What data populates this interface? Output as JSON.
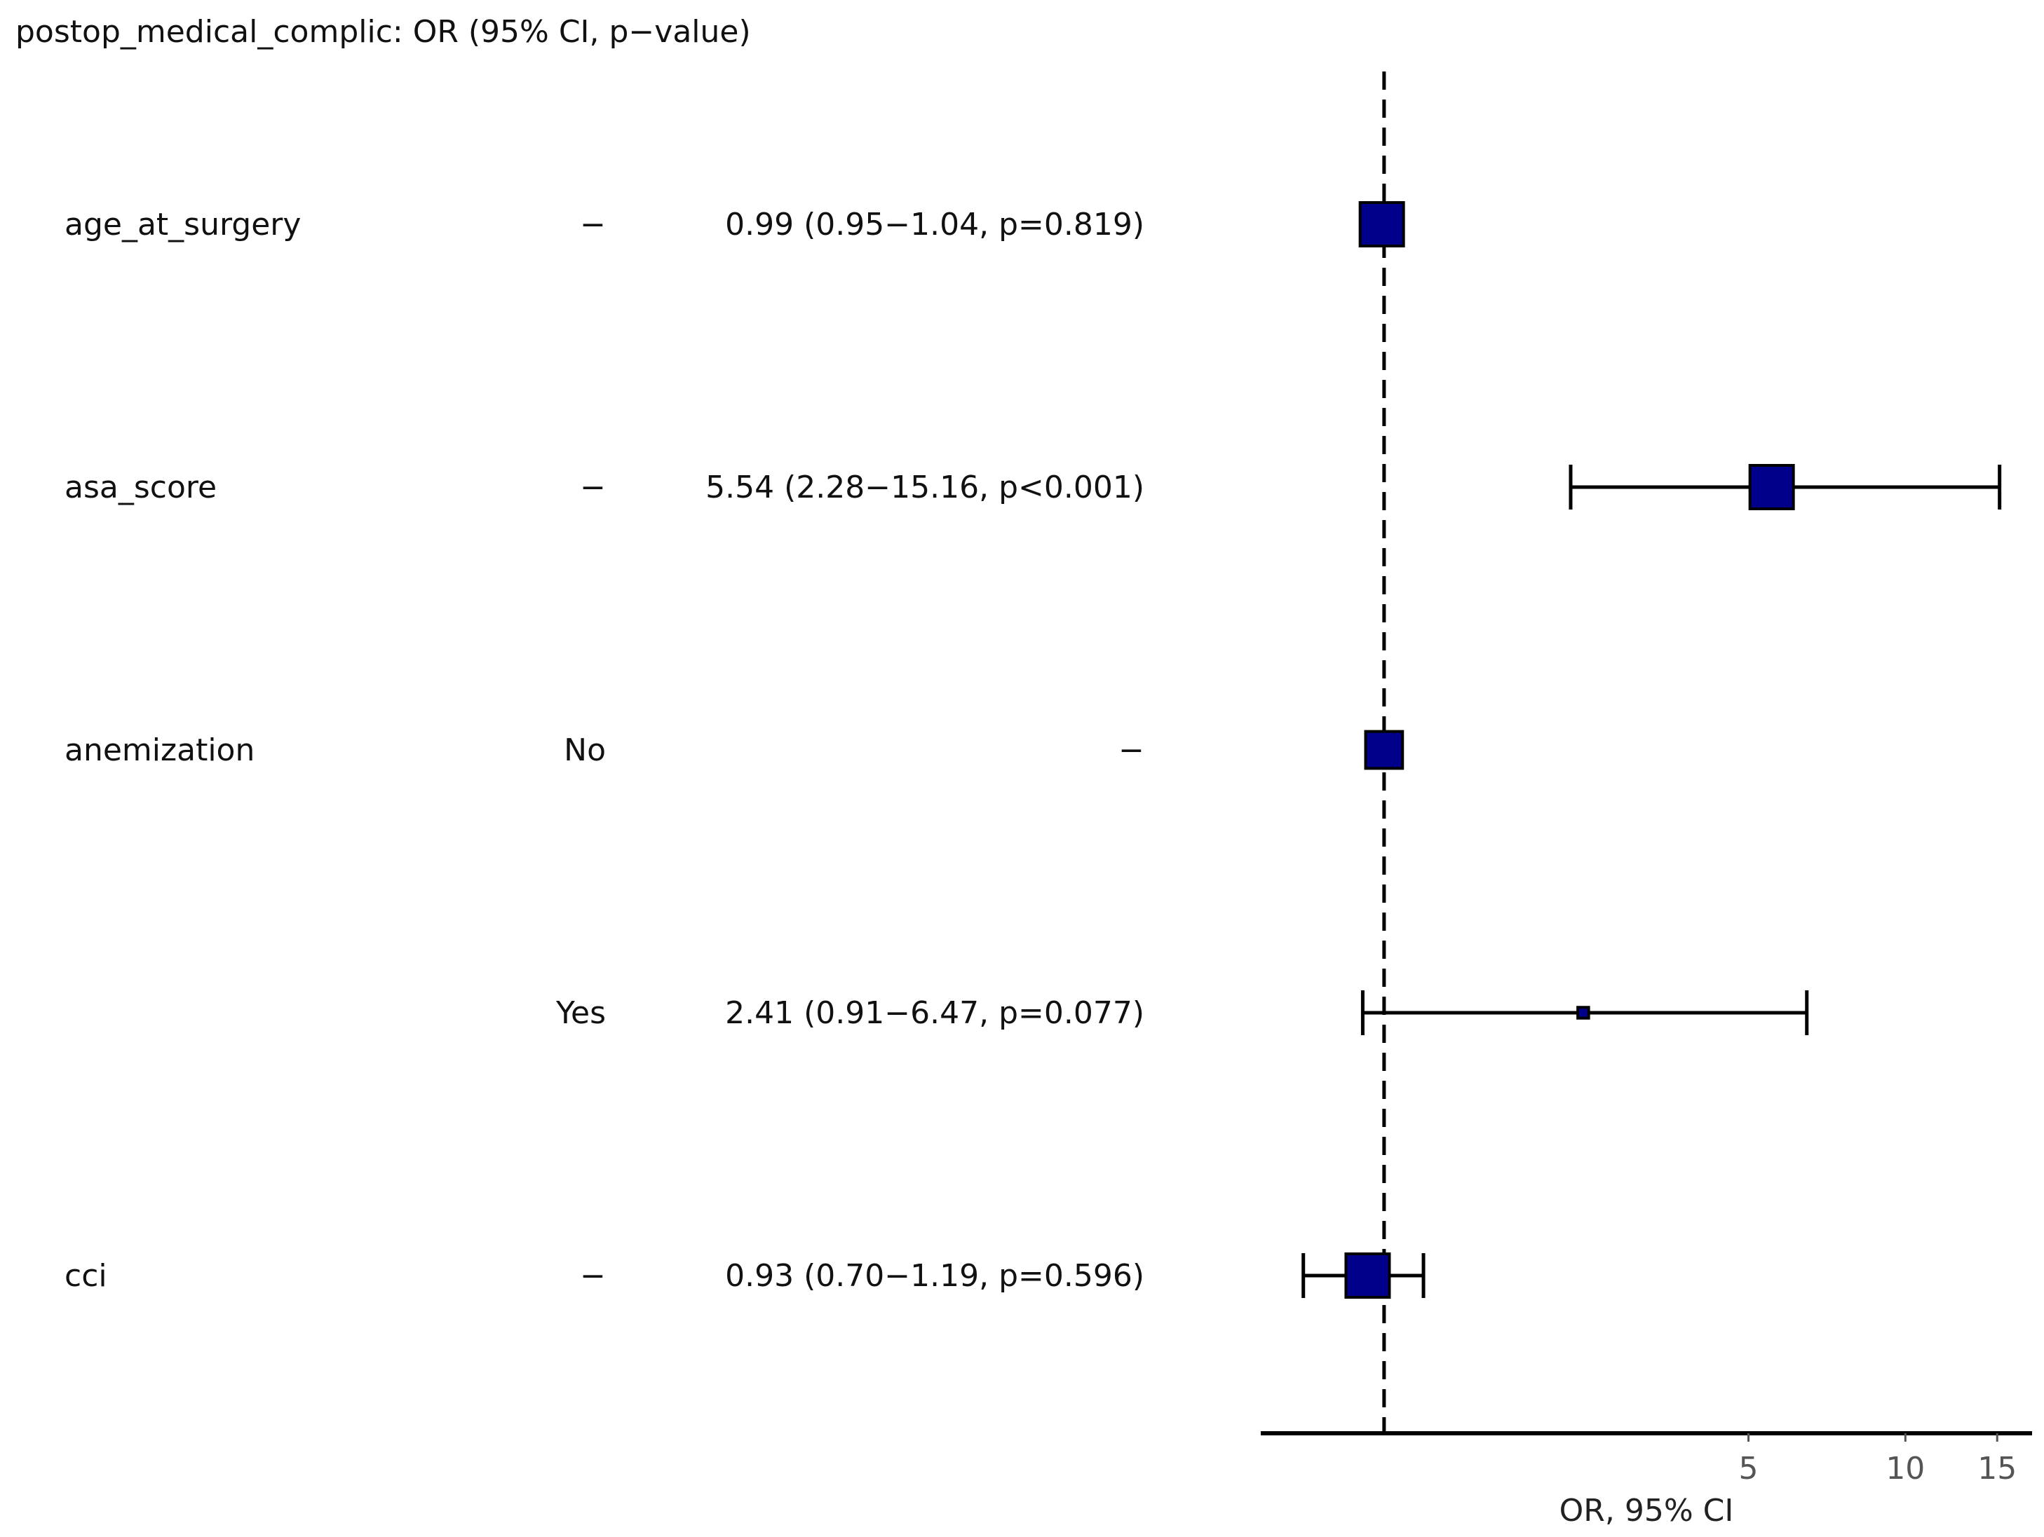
{
  "chart_data": {
    "type": "scatter",
    "subtype": "forest-plot",
    "title": "postop_medical_complic: OR (95% CI, p−value)",
    "xlabel": "OR, 95% CI",
    "x_scale": "log",
    "xlim": [
      0.58,
      17.5
    ],
    "reference_line": 1,
    "xticks": [
      {
        "value": 5,
        "label": "5"
      },
      {
        "value": 10,
        "label": "10"
      },
      {
        "value": 15,
        "label": "15"
      }
    ],
    "colors": {
      "point_fill": "#00008B",
      "point_stroke": "#000000",
      "lines": "#000000"
    },
    "rows": [
      {
        "variable": "age_at_surgery",
        "level": "−",
        "text": "0.99 (0.95−1.04, p=0.819)",
        "or": 0.99,
        "lower": 0.95,
        "upper": 1.04,
        "weight": 1.0
      },
      {
        "variable": "asa_score",
        "level": "−",
        "text": "5.54 (2.28−15.16, p<0.001)",
        "or": 5.54,
        "lower": 2.28,
        "upper": 15.16,
        "weight": 1.0
      },
      {
        "variable": "anemization",
        "level": "No",
        "text": "−",
        "or": 1.0,
        "lower": null,
        "upper": null,
        "weight": 0.85
      },
      {
        "variable": "",
        "level": "Yes",
        "text": "2.41 (0.91−6.47, p=0.077)",
        "or": 2.41,
        "lower": 0.91,
        "upper": 6.47,
        "weight": 0.25
      },
      {
        "variable": "cci",
        "level": "−",
        "text": "0.93 (0.70−1.19, p=0.596)",
        "or": 0.93,
        "lower": 0.7,
        "upper": 1.19,
        "weight": 1.0
      }
    ]
  }
}
